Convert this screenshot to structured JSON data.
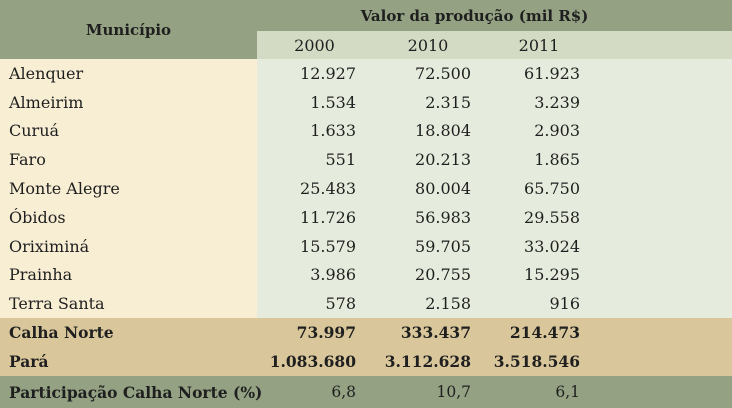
{
  "table": {
    "header": {
      "municipio": "Município",
      "valor": "Valor da produção (mil R$)",
      "years": [
        "2000",
        "2010",
        "2011"
      ]
    },
    "rows": [
      {
        "name": "Alenquer",
        "values": [
          "12.927",
          "72.500",
          "61.923"
        ]
      },
      {
        "name": "Almeirim",
        "values": [
          "1.534",
          "2.315",
          "3.239"
        ]
      },
      {
        "name": "Curuá",
        "values": [
          "1.633",
          "18.804",
          "2.903"
        ]
      },
      {
        "name": "Faro",
        "values": [
          "551",
          "20.213",
          "1.865"
        ]
      },
      {
        "name": "Monte Alegre",
        "values": [
          "25.483",
          "80.004",
          "65.750"
        ]
      },
      {
        "name": "Óbidos",
        "values": [
          "11.726",
          "56.983",
          "29.558"
        ]
      },
      {
        "name": "Oriximiná",
        "values": [
          "15.579",
          "59.705",
          "33.024"
        ]
      },
      {
        "name": "Prainha",
        "values": [
          "3.986",
          "20.755",
          "15.295"
        ]
      },
      {
        "name": "Terra Santa",
        "values": [
          "578",
          "2.158",
          "916"
        ]
      }
    ],
    "totals": [
      {
        "name": "Calha Norte",
        "values": [
          "73.997",
          "333.437",
          "214.473"
        ]
      },
      {
        "name": "Pará",
        "values": [
          "1.083.680",
          "3.112.628",
          "3.518.546"
        ]
      }
    ],
    "footer": {
      "name": "Participação Calha Norte (%)",
      "values": [
        "6,8",
        "10,7",
        "6,1"
      ]
    }
  }
}
